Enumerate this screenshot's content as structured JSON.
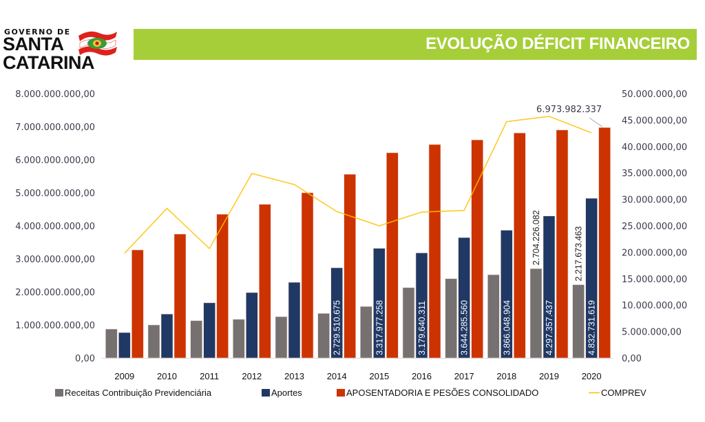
{
  "header": {
    "logo_line1": "GOVERNO DE",
    "logo_line2": "SANTA",
    "logo_line3": "CATARINA",
    "title": "EVOLUÇÃO DÉFICIT FINANCEIRO",
    "banner_color": "#a6ce39"
  },
  "chart_data": {
    "type": "bar",
    "title": "EVOLUÇÃO DÉFICIT FINANCEIRO",
    "xlabel": "",
    "ylabel": "",
    "categories": [
      "2009",
      "2010",
      "2011",
      "2012",
      "2013",
      "2014",
      "2015",
      "2016",
      "2017",
      "2018",
      "2019",
      "2020"
    ],
    "ylim": [
      0,
      8000000000
    ],
    "y2lim": [
      0,
      50000000
    ],
    "yticks": [
      "0,00",
      "1.000.000.000,00",
      "2.000.000.000,00",
      "3.000.000.000,00",
      "4.000.000.000,00",
      "5.000.000.000,00",
      "6.000.000.000,00",
      "7.000.000.000,00",
      "8.000.000.000,00"
    ],
    "y2ticks": [
      "0,00",
      "5.000.000,00",
      "10.000.000,00",
      "15.000.000,00",
      "20.000.000,00",
      "25.000.000,00",
      "30.000.000,00",
      "35.000.000,00",
      "40.000.000,00",
      "45.000.000,00",
      "50.000.000,00"
    ],
    "grid": false,
    "legend_position": "bottom",
    "series": [
      {
        "name": "Receitas Contribuição Previdenciária",
        "type": "bar",
        "axis": "left",
        "color": "#767171",
        "values": [
          875000000,
          1000000000,
          1130000000,
          1170000000,
          1250000000,
          1350000000,
          1560000000,
          2130000000,
          2400000000,
          2520000000,
          2704226082,
          2217673463
        ],
        "labels": [
          "",
          "",
          "",
          "",
          "",
          "",
          "",
          "",
          "",
          "",
          "2.704.226.082",
          "2.217.673.463"
        ]
      },
      {
        "name": "Aportes",
        "type": "bar",
        "axis": "left",
        "color": "#203864",
        "values": [
          770000000,
          1330000000,
          1670000000,
          1980000000,
          2290000000,
          2729510675,
          3317977258,
          3179640311,
          3644285560,
          3866048904,
          4297357437,
          4832731619
        ],
        "labels": [
          "",
          "",
          "",
          "",
          "",
          "2.729.510.675",
          "3.317.977.258",
          "3.179.640.311",
          "3.644.285.560",
          "3.866.048.904",
          "4.297.357.437",
          "4.832.731.619"
        ]
      },
      {
        "name": "APOSENTADORIA E PESÕES CONSOLIDADO",
        "type": "bar",
        "axis": "left",
        "color": "#cc3300",
        "values": [
          3270000000,
          3750000000,
          4350000000,
          4650000000,
          5000000000,
          5560000000,
          6210000000,
          6460000000,
          6600000000,
          6810000000,
          6900000000,
          6973982337
        ],
        "labels": [
          "",
          "",
          "",
          "",
          "",
          "",
          "",
          "",
          "",
          "",
          "",
          "6.973.982.337"
        ]
      },
      {
        "name": "COMPREV",
        "type": "line",
        "axis": "right",
        "color": "#ffc000",
        "values": [
          19800000,
          28300000,
          20700000,
          34900000,
          32800000,
          27700000,
          25000000,
          27600000,
          27900000,
          44700000,
          45700000,
          42600000
        ]
      }
    ]
  }
}
